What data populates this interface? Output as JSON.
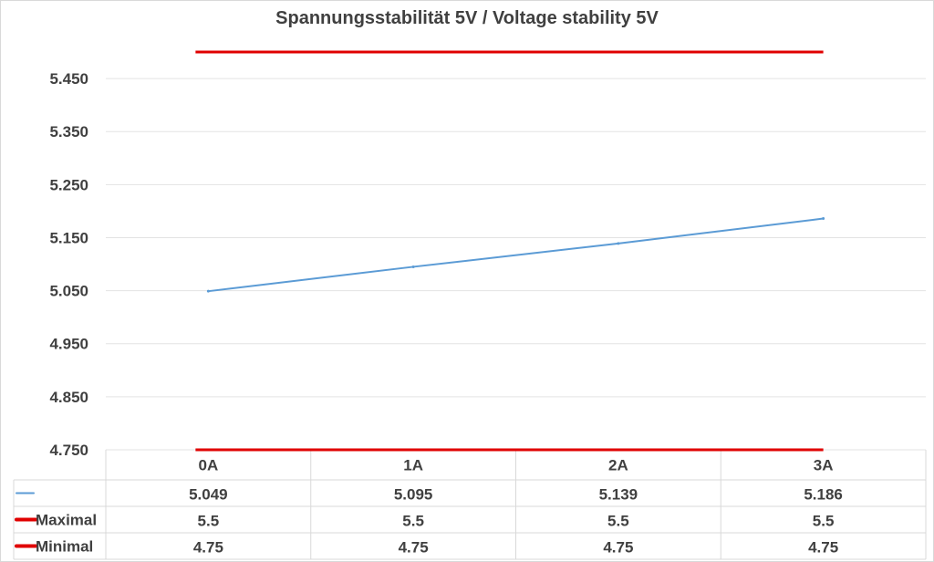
{
  "chart_data": {
    "type": "line",
    "title": "Spannungsstabilität 5V / Voltage stability 5V",
    "categories": [
      "0A",
      "1A",
      "2A",
      "3A"
    ],
    "ylim": [
      4.75,
      5.5
    ],
    "yticks": [
      "4.750",
      "4.850",
      "4.950",
      "5.050",
      "5.150",
      "5.250",
      "5.350",
      "5.450"
    ],
    "grid": true,
    "legend_placement": "data-table",
    "series": [
      {
        "name": "",
        "values": [
          5.049,
          5.095,
          5.139,
          5.186
        ],
        "labels": [
          "5.049",
          "5.095",
          "5.139",
          "5.186"
        ],
        "color": "#5b9bd5"
      },
      {
        "name": "Maximal",
        "values": [
          5.5,
          5.5,
          5.5,
          5.5
        ],
        "labels": [
          "5.5",
          "5.5",
          "5.5",
          "5.5"
        ],
        "color": "#e00000"
      },
      {
        "name": "Minimal",
        "values": [
          4.75,
          4.75,
          4.75,
          4.75
        ],
        "labels": [
          "4.75",
          "4.75",
          "4.75",
          "4.75"
        ],
        "color": "#e00000"
      }
    ]
  }
}
